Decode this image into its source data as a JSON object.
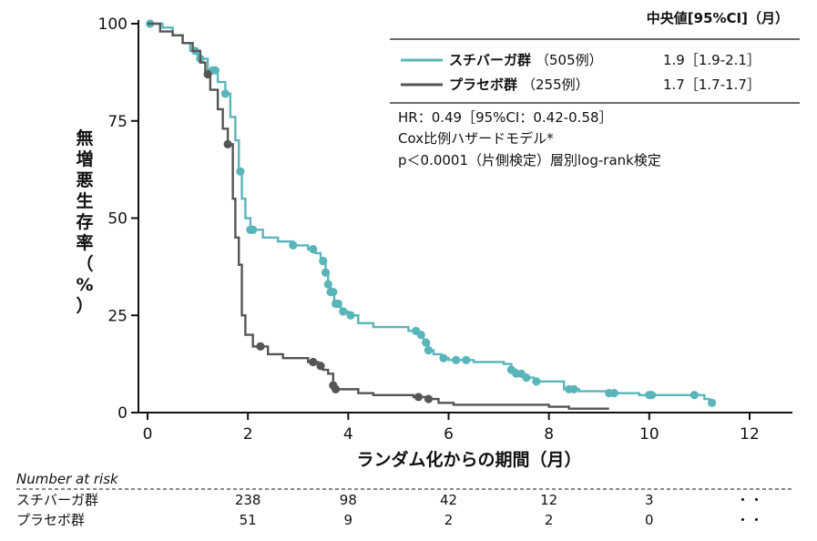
{
  "chart_data": {
    "type": "line",
    "subtype": "kaplan-meier",
    "xlabel": "ランダム化からの期間（月）",
    "ylabel": "無増悪生存率（%）",
    "ylabel_chars": [
      "無",
      "増",
      "悪",
      "生",
      "存",
      "率",
      "（",
      "%",
      "）"
    ],
    "xlim": [
      0,
      12.8
    ],
    "ylim": [
      0,
      100
    ],
    "x_ticks": [
      0,
      2,
      4,
      6,
      8,
      10,
      12
    ],
    "y_ticks": [
      0,
      25,
      50,
      75,
      100
    ],
    "legend": {
      "header": "中央値[95%CI]（月）",
      "entries": [
        {
          "label": "スチバーガ群",
          "n": "（505例）",
          "median": "1.9［1.9-2.1］"
        },
        {
          "label": "プラセボ群",
          "n": "（255例）",
          "median": "1.7［1.7-1.7］"
        }
      ]
    },
    "stats": [
      "HR：0.49［95%CI：0.42-0.58］",
      "Cox比例ハザードモデル*",
      "p＜0.0001（片側検定）層別log-rank検定"
    ],
    "series": [
      {
        "name": "スチバーガ群",
        "color": "#5ab5bb",
        "steps": [
          [
            0,
            100
          ],
          [
            0.3,
            99
          ],
          [
            0.5,
            97
          ],
          [
            0.7,
            95
          ],
          [
            0.85,
            93
          ],
          [
            1.0,
            91
          ],
          [
            1.2,
            88
          ],
          [
            1.4,
            85
          ],
          [
            1.55,
            82
          ],
          [
            1.65,
            76
          ],
          [
            1.75,
            70
          ],
          [
            1.82,
            62
          ],
          [
            1.88,
            55
          ],
          [
            1.95,
            50
          ],
          [
            2.05,
            47
          ],
          [
            2.3,
            45
          ],
          [
            2.6,
            44
          ],
          [
            2.9,
            43
          ],
          [
            3.2,
            42
          ],
          [
            3.35,
            41
          ],
          [
            3.45,
            39
          ],
          [
            3.55,
            36
          ],
          [
            3.6,
            33
          ],
          [
            3.65,
            31
          ],
          [
            3.72,
            28
          ],
          [
            3.85,
            26
          ],
          [
            4.0,
            25
          ],
          [
            4.2,
            23
          ],
          [
            4.5,
            22
          ],
          [
            5.2,
            21
          ],
          [
            5.4,
            20
          ],
          [
            5.5,
            18
          ],
          [
            5.6,
            16
          ],
          [
            5.7,
            15
          ],
          [
            5.85,
            14
          ],
          [
            6.0,
            13.5
          ],
          [
            6.5,
            13
          ],
          [
            7.1,
            12.5
          ],
          [
            7.25,
            11
          ],
          [
            7.35,
            10
          ],
          [
            7.5,
            9
          ],
          [
            7.7,
            8
          ],
          [
            8.3,
            6
          ],
          [
            8.6,
            5.5
          ],
          [
            9.2,
            5
          ],
          [
            9.8,
            4.5
          ],
          [
            11.1,
            3.5
          ],
          [
            11.2,
            2.5
          ]
        ],
        "censor_x": [
          0.05,
          0.95,
          1.05,
          1.3,
          1.35,
          1.55,
          1.85,
          2.05,
          2.1,
          2.9,
          3.3,
          3.5,
          3.55,
          3.6,
          3.65,
          3.7,
          3.75,
          3.8,
          3.9,
          4.05,
          5.35,
          5.45,
          5.55,
          5.6,
          5.9,
          6.15,
          6.35,
          7.25,
          7.35,
          7.45,
          7.55,
          7.75,
          8.4,
          8.5,
          9.2,
          9.3,
          10.0,
          10.05,
          10.9,
          11.25
        ]
      },
      {
        "name": "プラセボ群",
        "color": "#555555",
        "steps": [
          [
            0,
            100
          ],
          [
            0.25,
            98
          ],
          [
            0.5,
            97
          ],
          [
            0.7,
            95
          ],
          [
            0.9,
            93
          ],
          [
            1.05,
            90
          ],
          [
            1.15,
            87
          ],
          [
            1.25,
            83
          ],
          [
            1.4,
            78
          ],
          [
            1.5,
            73
          ],
          [
            1.6,
            69
          ],
          [
            1.7,
            55
          ],
          [
            1.75,
            45
          ],
          [
            1.82,
            38
          ],
          [
            1.88,
            25
          ],
          [
            1.95,
            20
          ],
          [
            2.1,
            17
          ],
          [
            2.4,
            15
          ],
          [
            2.7,
            14
          ],
          [
            3.2,
            13
          ],
          [
            3.4,
            12
          ],
          [
            3.5,
            11
          ],
          [
            3.6,
            10
          ],
          [
            3.7,
            7
          ],
          [
            3.75,
            6
          ],
          [
            4.2,
            5
          ],
          [
            4.5,
            4.5
          ],
          [
            5.3,
            4
          ],
          [
            5.6,
            3.5
          ],
          [
            5.8,
            2.5
          ],
          [
            6.1,
            2
          ],
          [
            8.0,
            1.5
          ],
          [
            8.4,
            1
          ],
          [
            9.2,
            1
          ]
        ],
        "censor_x": [
          1.2,
          1.6,
          2.25,
          3.3,
          3.45,
          3.7,
          3.75,
          5.4,
          5.6
        ]
      }
    ]
  },
  "risk_table": {
    "title": "Number at risk",
    "rows": [
      {
        "label": "スチバーガ群",
        "values": [
          "238",
          "98",
          "42",
          "12",
          "3",
          "・・"
        ]
      },
      {
        "label": "プラセボ群",
        "values": [
          "51",
          "9",
          "2",
          "2",
          "0",
          "・・"
        ]
      }
    ]
  }
}
